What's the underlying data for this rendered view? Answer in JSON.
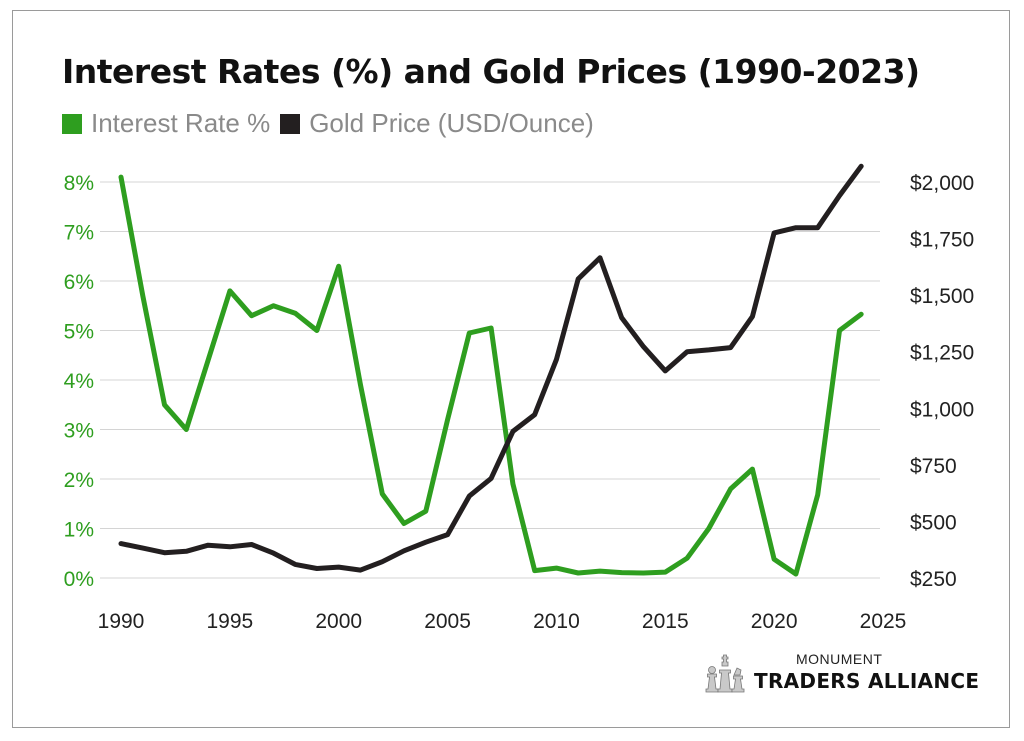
{
  "chart_data": {
    "type": "line",
    "title": "Interest Rates (%) and Gold Prices (1990-2023)",
    "xlim": [
      1990,
      2025
    ],
    "x_ticks": [
      "1990",
      "1995",
      "2000",
      "2005",
      "2010",
      "2015",
      "2020",
      "2025"
    ],
    "y_left": {
      "ylim": [
        0,
        8
      ],
      "tick_labels": [
        "0%",
        "1%",
        "2%",
        "3%",
        "4%",
        "5%",
        "6%",
        "7%",
        "8%"
      ]
    },
    "y_right": {
      "ylim": [
        250,
        2000
      ],
      "tick_labels": [
        "$250",
        "$500",
        "$750",
        "$1,000",
        "$1,250",
        "$1,500",
        "$1,750",
        "$2,000"
      ]
    },
    "grid": true,
    "legend_placement": "top-left",
    "series": [
      {
        "name": "Interest Rate %",
        "axis": "left",
        "color": "#2e9e1f",
        "x": [
          1990,
          1991,
          1992,
          1993,
          1994,
          1995,
          1996,
          1997,
          1998,
          1999,
          2000,
          2001,
          2002,
          2003,
          2004,
          2005,
          2006,
          2007,
          2008,
          2009,
          2010,
          2011,
          2012,
          2013,
          2014,
          2015,
          2016,
          2017,
          2018,
          2019,
          2020,
          2021,
          2022,
          2023,
          2024
        ],
        "values": [
          8.1,
          5.7,
          3.5,
          3.0,
          4.4,
          5.8,
          5.3,
          5.5,
          5.35,
          5.0,
          6.3,
          3.9,
          1.7,
          1.1,
          1.35,
          3.2,
          4.95,
          5.05,
          1.9,
          0.15,
          0.2,
          0.1,
          0.14,
          0.11,
          0.1,
          0.12,
          0.4,
          1.0,
          1.8,
          2.2,
          0.38,
          0.08,
          1.68,
          5.0,
          5.33
        ]
      },
      {
        "name": "Gold Price (USD/Ounce)",
        "axis": "right",
        "color": "#231f20",
        "x": [
          1990,
          1991,
          1992,
          1993,
          1994,
          1995,
          1996,
          1997,
          1998,
          1999,
          2000,
          2001,
          2002,
          2003,
          2004,
          2005,
          2006,
          2007,
          2008,
          2009,
          2010,
          2011,
          2012,
          2013,
          2014,
          2015,
          2016,
          2017,
          2018,
          2019,
          2020,
          2021,
          2022,
          2023,
          2024
        ],
        "values": [
          402,
          382,
          362,
          368,
          395,
          388,
          398,
          360,
          310,
          292,
          298,
          285,
          322,
          370,
          408,
          442,
          612,
          690,
          898,
          972,
          1215,
          1572,
          1665,
          1400,
          1272,
          1165,
          1250,
          1258,
          1268,
          1405,
          1775,
          1798,
          1798,
          1940,
          2070
        ]
      }
    ]
  },
  "logo": {
    "top": "MONUMENT",
    "bottom": "TRADERS ALLIANCE",
    "icon": "chess-pieces-icon"
  }
}
